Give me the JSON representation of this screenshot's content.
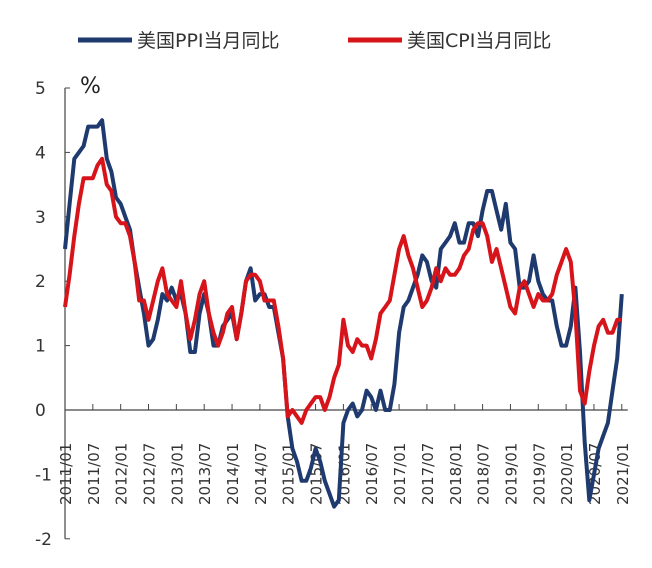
{
  "chart_data": {
    "type": "line",
    "title": "",
    "ylabel": "%",
    "xlabel": "",
    "ylim": [
      -2,
      5
    ],
    "yticks": [
      "-2",
      "-1",
      "0",
      "1",
      "2",
      "3",
      "4",
      "5"
    ],
    "xtick_labels": [
      "2011/01",
      "2011/07",
      "2012/01",
      "2012/07",
      "2013/01",
      "2013/07",
      "2014/01",
      "2014/07",
      "2015/01",
      "2015/07",
      "2016/01",
      "2016/07",
      "2017/01",
      "2017/07",
      "2018/01",
      "2018/07",
      "2019/01",
      "2019/07",
      "2020/01",
      "2020/07",
      "2021/01"
    ],
    "x_start": "2011/01",
    "x_frequency": "monthly",
    "legend_position": "top",
    "series": [
      {
        "name": "美国PPI当月同比",
        "color": "#1f3a6e",
        "values": [
          2.5,
          3.2,
          3.9,
          4.0,
          4.1,
          4.4,
          4.4,
          4.4,
          4.5,
          3.9,
          3.7,
          3.3,
          3.2,
          3.0,
          2.8,
          2.3,
          1.9,
          1.5,
          1.0,
          1.1,
          1.4,
          1.8,
          1.7,
          1.9,
          1.7,
          1.8,
          1.5,
          0.9,
          0.9,
          1.5,
          1.8,
          1.5,
          1.0,
          1.0,
          1.3,
          1.4,
          1.5,
          1.1,
          1.5,
          2.0,
          2.2,
          1.7,
          1.8,
          1.8,
          1.6,
          1.6,
          1.2,
          0.8,
          -0.1,
          -0.6,
          -0.8,
          -1.1,
          -1.1,
          -0.9,
          -0.6,
          -0.8,
          -1.1,
          -1.3,
          -1.5,
          -1.4,
          -0.2,
          0.0,
          0.1,
          -0.1,
          0.0,
          0.3,
          0.2,
          0.0,
          0.3,
          0.0,
          0.0,
          0.4,
          1.2,
          1.6,
          1.7,
          1.9,
          2.1,
          2.4,
          2.3,
          2.0,
          1.9,
          2.5,
          2.6,
          2.7,
          2.9,
          2.6,
          2.6,
          2.9,
          2.9,
          2.7,
          3.1,
          3.4,
          3.4,
          3.1,
          2.8,
          3.2,
          2.6,
          2.5,
          1.9,
          1.9,
          2.0,
          2.4,
          2.0,
          1.8,
          1.7,
          1.7,
          1.3,
          1.0,
          1.0,
          1.3,
          1.9,
          0.9,
          -0.5,
          -1.4,
          -1.0,
          -0.6,
          -0.4,
          -0.2,
          0.3,
          0.8,
          1.8
        ]
      },
      {
        "name": "美国CPI当月同比",
        "color": "#d7141a",
        "values": [
          1.6,
          2.1,
          2.7,
          3.2,
          3.6,
          3.6,
          3.6,
          3.8,
          3.9,
          3.5,
          3.4,
          3.0,
          2.9,
          2.9,
          2.7,
          2.3,
          1.7,
          1.7,
          1.4,
          1.7,
          2.0,
          2.2,
          1.8,
          1.7,
          1.6,
          2.0,
          1.5,
          1.1,
          1.4,
          1.8,
          2.0,
          1.5,
          1.2,
          1.0,
          1.2,
          1.5,
          1.6,
          1.1,
          1.5,
          2.0,
          2.1,
          2.1,
          2.0,
          1.7,
          1.7,
          1.7,
          1.3,
          0.8,
          -0.1,
          0.0,
          -0.1,
          -0.2,
          0.0,
          0.1,
          0.2,
          0.2,
          0.0,
          0.2,
          0.5,
          0.7,
          1.4,
          1.0,
          0.9,
          1.1,
          1.0,
          1.0,
          0.8,
          1.1,
          1.5,
          1.6,
          1.7,
          2.1,
          2.5,
          2.7,
          2.4,
          2.2,
          1.9,
          1.6,
          1.7,
          1.9,
          2.2,
          2.0,
          2.2,
          2.1,
          2.1,
          2.2,
          2.4,
          2.5,
          2.8,
          2.9,
          2.9,
          2.7,
          2.3,
          2.5,
          2.2,
          1.9,
          1.6,
          1.5,
          1.9,
          2.0,
          1.8,
          1.6,
          1.8,
          1.7,
          1.7,
          1.8,
          2.1,
          2.3,
          2.5,
          2.3,
          1.5,
          0.3,
          0.1,
          0.6,
          1.0,
          1.3,
          1.4,
          1.2,
          1.2,
          1.4,
          1.4
        ]
      }
    ]
  }
}
